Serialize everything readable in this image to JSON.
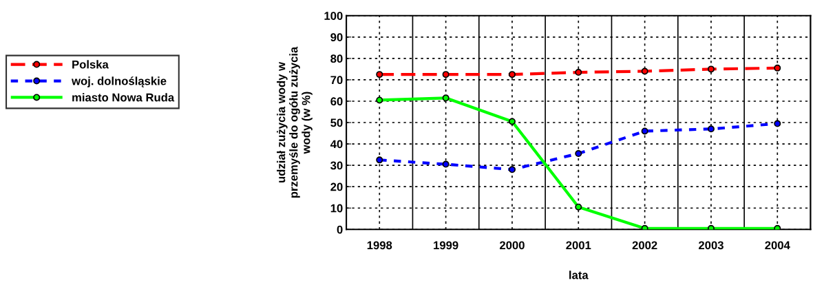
{
  "chart_data": {
    "type": "line",
    "xlabel": "lata",
    "ylabel": "udział zużycia wody w\nprzemyśle do ogółu zużycia\nwody (w %)",
    "categories": [
      "1998",
      "1999",
      "2000",
      "2001",
      "2002",
      "2003",
      "2004"
    ],
    "series": [
      {
        "name": "Polska",
        "color": "#ff0000",
        "line_style": "dashed",
        "values": [
          72.5,
          72.5,
          72.5,
          73.5,
          74,
          75,
          75.5
        ]
      },
      {
        "name": "woj. dolnośląskie",
        "color": "#0000ff",
        "line_style": "dotted",
        "values": [
          32.5,
          30.5,
          28,
          35.5,
          46,
          47,
          49.5
        ]
      },
      {
        "name": "miasto Nowa Ruda",
        "color": "#00ff00",
        "line_style": "solid",
        "values": [
          60.5,
          61.5,
          50.5,
          10.5,
          0.5,
          0.5,
          0.5
        ]
      }
    ],
    "ylim": [
      0,
      100
    ],
    "yticks": [
      0,
      10,
      20,
      30,
      40,
      50,
      60,
      70,
      80,
      90,
      100
    ],
    "grid": true,
    "legend": "left",
    "marker": "circle"
  }
}
